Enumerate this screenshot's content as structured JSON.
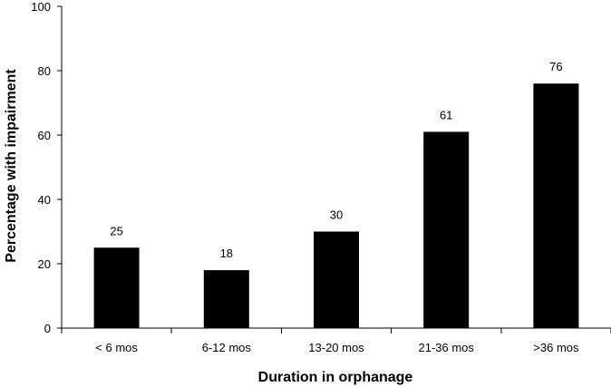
{
  "chart_data": {
    "type": "bar",
    "categories": [
      "< 6 mos",
      "6-12 mos",
      "13-20 mos",
      "21-36 mos",
      ">36 mos"
    ],
    "values": [
      25,
      18,
      30,
      61,
      76
    ],
    "data_labels": [
      "25",
      "18",
      "30",
      "61",
      "76"
    ],
    "title": "",
    "xlabel": "Duration in orphanage",
    "ylabel": "Percentage with impairment",
    "ylim": [
      0,
      100
    ],
    "yticks": [
      0,
      20,
      40,
      60,
      80,
      100
    ],
    "grid": false,
    "legend": "none",
    "bar_color": "#000000"
  }
}
